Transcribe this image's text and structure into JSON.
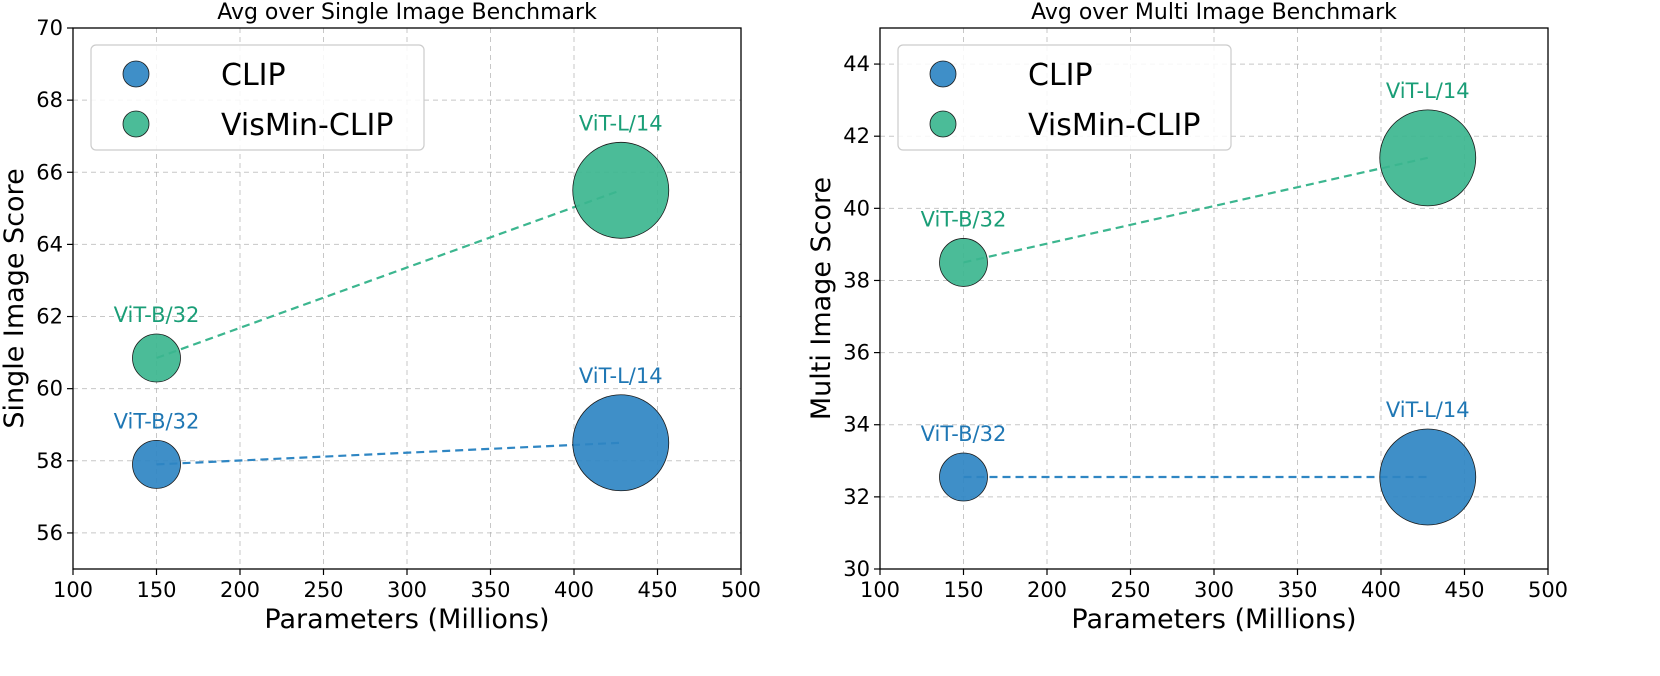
{
  "colors": {
    "clip": "#2f86c3",
    "clip_label": "#1f77b4",
    "vismin": "#3cb68f",
    "vismin_label": "#1a9e77",
    "grid": "#b0b0b0"
  },
  "chart_data": [
    {
      "type": "scatter",
      "title": "Avg over Single Image Benchmark",
      "xlabel": "Parameters (Millions)",
      "ylabel": "Single Image Score",
      "xlim": [
        100,
        500
      ],
      "ylim": [
        55,
        70
      ],
      "xticks": [
        100,
        150,
        200,
        250,
        300,
        350,
        400,
        450,
        500
      ],
      "yticks": [
        56,
        58,
        60,
        62,
        64,
        66,
        68,
        70
      ],
      "grid": true,
      "grid_style": "dashed",
      "legend": "top-left",
      "series": [
        {
          "name": "CLIP",
          "color_key": "clip",
          "trend_line": "dashed",
          "points": [
            {
              "x": 150,
              "y": 57.9,
              "label": "ViT-B/32"
            },
            {
              "x": 428,
              "y": 58.5,
              "label": "ViT-L/14"
            }
          ]
        },
        {
          "name": "VisMin-CLIP",
          "color_key": "vismin",
          "trend_line": "dashed",
          "points": [
            {
              "x": 150,
              "y": 60.85,
              "label": "ViT-B/32"
            },
            {
              "x": 428,
              "y": 65.5,
              "label": "ViT-L/14"
            }
          ]
        }
      ]
    },
    {
      "type": "scatter",
      "title": "Avg over Multi Image Benchmark",
      "xlabel": "Parameters (Millions)",
      "ylabel": "Multi Image Score",
      "xlim": [
        100,
        500
      ],
      "ylim": [
        30,
        45
      ],
      "xticks": [
        100,
        150,
        200,
        250,
        300,
        350,
        400,
        450,
        500
      ],
      "yticks": [
        30,
        32,
        34,
        36,
        38,
        40,
        42,
        44
      ],
      "grid": true,
      "grid_style": "dashed",
      "legend": "top-left",
      "series": [
        {
          "name": "CLIP",
          "color_key": "clip",
          "trend_line": "dashed",
          "points": [
            {
              "x": 150,
              "y": 32.55,
              "label": "ViT-B/32"
            },
            {
              "x": 428,
              "y": 32.55,
              "label": "ViT-L/14"
            }
          ]
        },
        {
          "name": "VisMin-CLIP",
          "color_key": "vismin",
          "trend_line": "dashed",
          "points": [
            {
              "x": 150,
              "y": 38.5,
              "label": "ViT-B/32"
            },
            {
              "x": 428,
              "y": 41.4,
              "label": "ViT-L/14"
            }
          ]
        }
      ]
    }
  ]
}
